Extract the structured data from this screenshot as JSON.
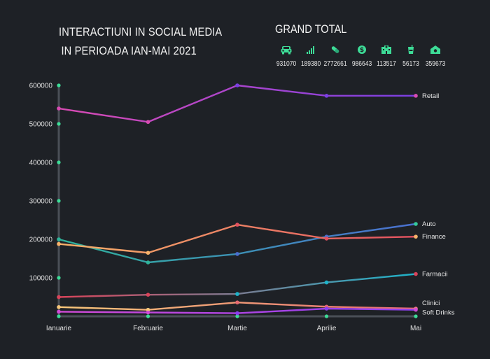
{
  "header": {
    "title_line1": "INTERACTIUNI IN SOCIAL MEDIA",
    "title_line2": "IN PERIOADA IAN-MAI 2021",
    "grand_total_label": "GRAND TOTAL"
  },
  "totals": [
    {
      "icon": "car-icon",
      "value": "931070"
    },
    {
      "icon": "signal-bars-icon",
      "value": "189380"
    },
    {
      "icon": "pill-icon",
      "value": "2772661"
    },
    {
      "icon": "dollar-coin-icon",
      "value": "986643"
    },
    {
      "icon": "hospital-icon",
      "value": "113517"
    },
    {
      "icon": "soft-drink-icon",
      "value": "56173"
    },
    {
      "icon": "shop-icon",
      "value": "359673"
    }
  ],
  "colors": {
    "background": "#1e2126",
    "icon": "#3ddc97",
    "axis_marker": "#3ddc97"
  },
  "chart_data": {
    "type": "line",
    "categories": [
      "Ianuarie",
      "Februarie",
      "Martie",
      "Aprilie",
      "Mai"
    ],
    "ylim": [
      0,
      600000
    ],
    "yticks": [
      "600000",
      "500000",
      "400000",
      "300000",
      "200000",
      "100000"
    ],
    "ytick_values": [
      600000,
      500000,
      400000,
      300000,
      200000,
      100000
    ],
    "grid": false,
    "series": [
      {
        "name": "Retail",
        "values": [
          540000,
          505000,
          600000,
          573000,
          573000
        ],
        "color_start": "#d94bb3",
        "color_end": "#7b3fe4",
        "end_dot": "#d94bb3"
      },
      {
        "name": "Auto",
        "values": [
          200000,
          140000,
          162000,
          207000,
          240000
        ],
        "color_start": "#2fb39a",
        "color_end": "#4a6fd0",
        "end_dot": "#35c99a"
      },
      {
        "name": "Finance",
        "values": [
          188000,
          165000,
          238000,
          202000,
          207000
        ],
        "color_start": "#f7b26a",
        "color_end": "#e2505f",
        "end_dot": "#f7b26a"
      },
      {
        "name": "Farmacii",
        "values": [
          50000,
          56000,
          58000,
          88000,
          110000
        ],
        "color_start": "#d9445a",
        "color_end": "#1db3c9",
        "end_dot": "#d9445a"
      },
      {
        "name": "Clinici",
        "values": [
          24000,
          17000,
          36000,
          25000,
          20000
        ],
        "color_start": "#f7c77a",
        "color_end": "#e76a72",
        "end_dot": "#ef7a88"
      },
      {
        "name": "Soft Drinks",
        "values": [
          12000,
          10000,
          8000,
          20000,
          17000
        ],
        "color_start": "#d14bd6",
        "color_end": "#8b3ef0",
        "end_dot": "#d14bd6"
      }
    ]
  }
}
